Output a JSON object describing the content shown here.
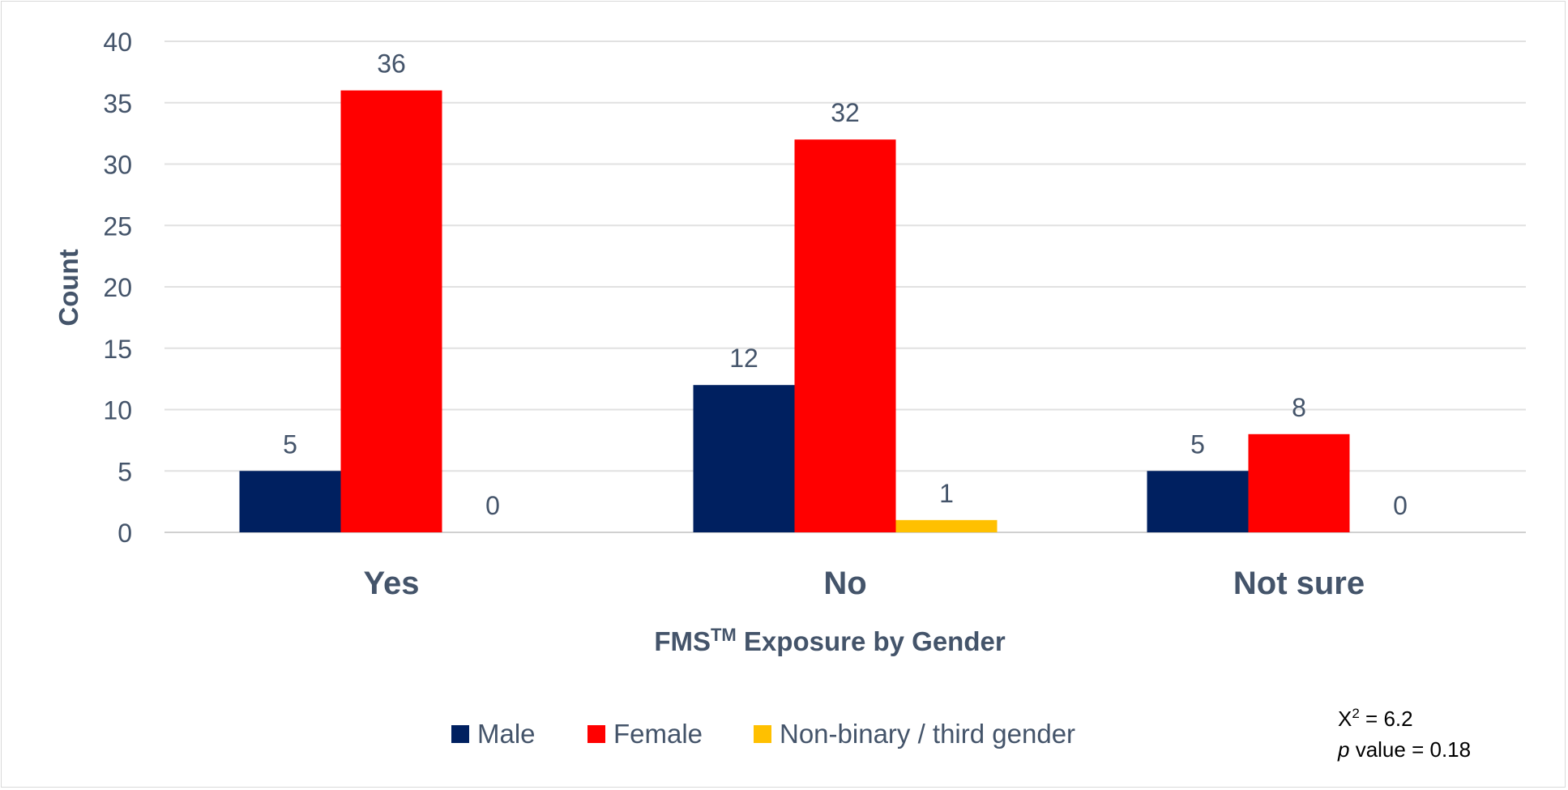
{
  "chart_data": {
    "type": "bar",
    "categories": [
      "Yes",
      "No",
      "Not sure"
    ],
    "series": [
      {
        "name": "Male",
        "color": "#002060",
        "values": [
          5,
          12,
          5
        ]
      },
      {
        "name": "Female",
        "color": "#ff0000",
        "values": [
          36,
          32,
          8
        ]
      },
      {
        "name": "Non-binary / third gender",
        "color": "#ffc000",
        "values": [
          0,
          1,
          0
        ]
      }
    ],
    "ylim": [
      0,
      40
    ],
    "yticks": [
      0,
      5,
      10,
      15,
      20,
      25,
      30,
      35,
      40
    ],
    "ylabel": "Count",
    "xlabel": {
      "main": "FMS",
      "superscript": "TM",
      "rest": " Exposure by Gender"
    },
    "grid": true,
    "legend_position": "bottom",
    "annotation": {
      "chi_symbol": "X",
      "chi_superscript": "2",
      "chi_value": " = 6.2",
      "p_symbol": "p",
      "p_value": " value = 0.18"
    }
  }
}
